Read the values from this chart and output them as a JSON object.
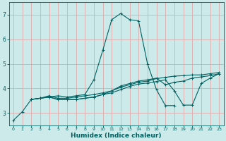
{
  "xlabel": "Humidex (Indice chaleur)",
  "xlim": [
    -0.5,
    23.5
  ],
  "ylim": [
    2.5,
    7.5
  ],
  "yticks": [
    3,
    4,
    5,
    6,
    7
  ],
  "xticks": [
    0,
    1,
    2,
    3,
    4,
    5,
    6,
    7,
    8,
    9,
    10,
    11,
    12,
    13,
    14,
    15,
    16,
    17,
    18,
    19,
    20,
    21,
    22,
    23
  ],
  "bg_color": "#cceaea",
  "grid_color": "#ddaaaa",
  "line_color": "#006060",
  "lines": [
    {
      "x": [
        0,
        1,
        2,
        3,
        4,
        5,
        6,
        7,
        8,
        9,
        10,
        11,
        12,
        13,
        14,
        15,
        16,
        17,
        18
      ],
      "y": [
        2.7,
        3.05,
        3.55,
        3.6,
        3.65,
        3.7,
        3.65,
        3.7,
        3.75,
        4.35,
        5.55,
        6.8,
        7.05,
        6.8,
        6.75,
        5.0,
        3.95,
        3.3,
        3.3
      ]
    },
    {
      "x": [
        2,
        3,
        4,
        5,
        6,
        7,
        8,
        9,
        10,
        11,
        12,
        13,
        14,
        15,
        16,
        17,
        18,
        19,
        20,
        21,
        22,
        23
      ],
      "y": [
        3.55,
        3.6,
        3.65,
        3.55,
        3.55,
        3.55,
        3.6,
        3.65,
        3.75,
        3.9,
        4.05,
        4.15,
        4.25,
        4.3,
        4.4,
        4.45,
        4.5,
        4.52,
        4.55,
        4.55,
        4.6,
        4.65
      ]
    },
    {
      "x": [
        2,
        3,
        4,
        5,
        6,
        7,
        8,
        9,
        10,
        11,
        12,
        13,
        14,
        15,
        16,
        17,
        18,
        19,
        20,
        21,
        22,
        23
      ],
      "y": [
        3.55,
        3.6,
        3.7,
        3.6,
        3.6,
        3.65,
        3.7,
        3.75,
        3.82,
        3.9,
        4.1,
        4.2,
        4.3,
        4.35,
        4.42,
        4.15,
        4.25,
        4.3,
        4.42,
        4.47,
        4.52,
        4.6
      ]
    },
    {
      "x": [
        2,
        3,
        4,
        5,
        6,
        7,
        8,
        9,
        10,
        11,
        12,
        13,
        14,
        15,
        16,
        17,
        18,
        19,
        20,
        21,
        22,
        23
      ],
      "y": [
        3.55,
        3.6,
        3.65,
        3.55,
        3.55,
        3.55,
        3.6,
        3.65,
        3.75,
        3.82,
        3.95,
        4.08,
        4.18,
        4.22,
        4.28,
        4.35,
        3.9,
        3.32,
        3.32,
        4.2,
        4.42,
        4.6
      ]
    }
  ]
}
